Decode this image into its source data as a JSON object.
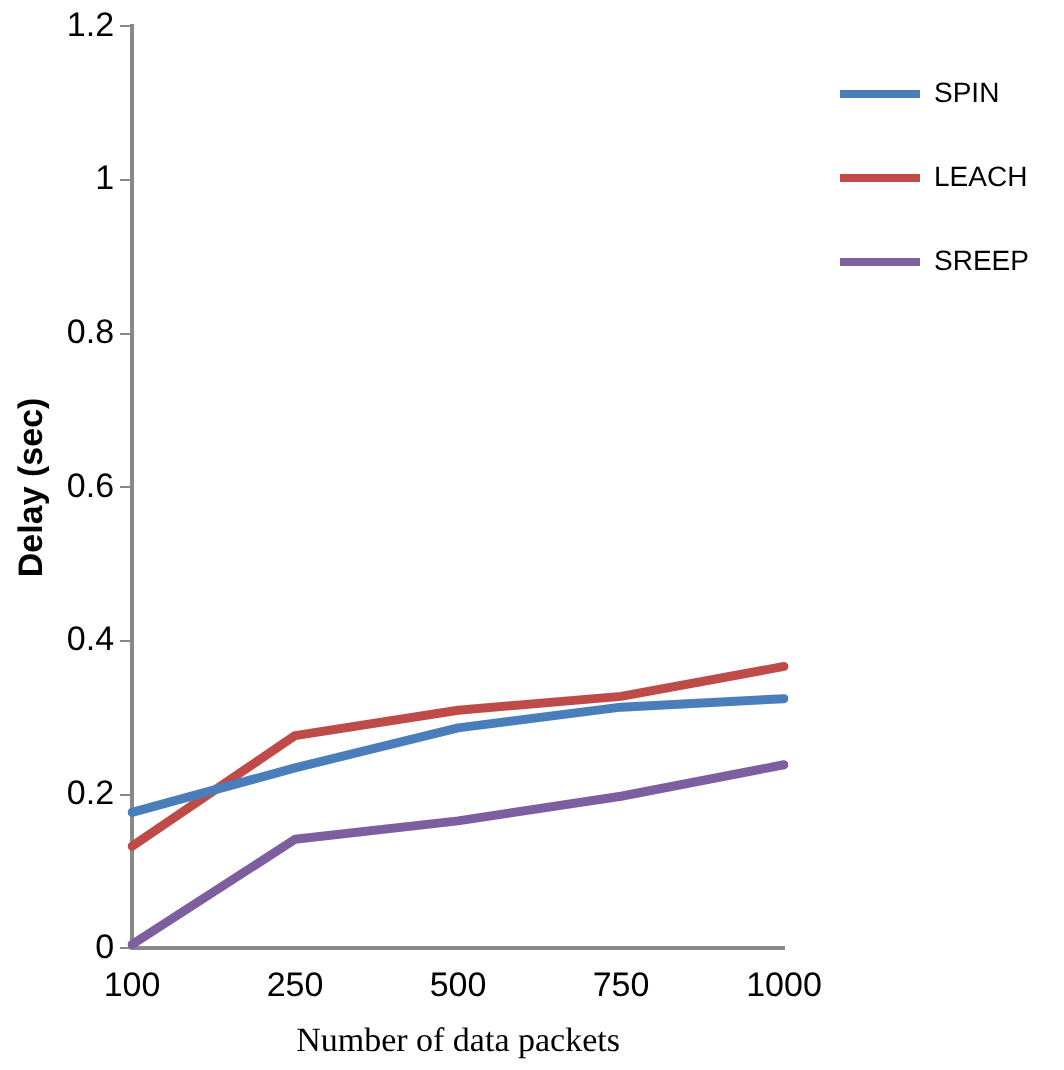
{
  "chart_data": {
    "type": "line",
    "xlabel": "Number of data packets",
    "ylabel": "Delay (sec)",
    "categories": [
      "100",
      "250",
      "500",
      "750",
      "1000"
    ],
    "series": [
      {
        "name": "SPIN",
        "color": "#4a7ebb",
        "values": [
          0.177,
          0.235,
          0.287,
          0.314,
          0.325
        ]
      },
      {
        "name": "LEACH",
        "color": "#be4b48",
        "values": [
          0.133,
          0.277,
          0.31,
          0.328,
          0.367
        ]
      },
      {
        "name": "SREEP",
        "color": "#7d5fa0",
        "values": [
          0.005,
          0.142,
          0.166,
          0.198,
          0.239
        ]
      }
    ],
    "ylim": [
      0,
      1.2
    ],
    "yticks": [
      0,
      0.2,
      0.4,
      0.6,
      0.8,
      1,
      1.2
    ],
    "grid": false,
    "legend": "top right",
    "marker": "none",
    "line_style": "solid"
  }
}
